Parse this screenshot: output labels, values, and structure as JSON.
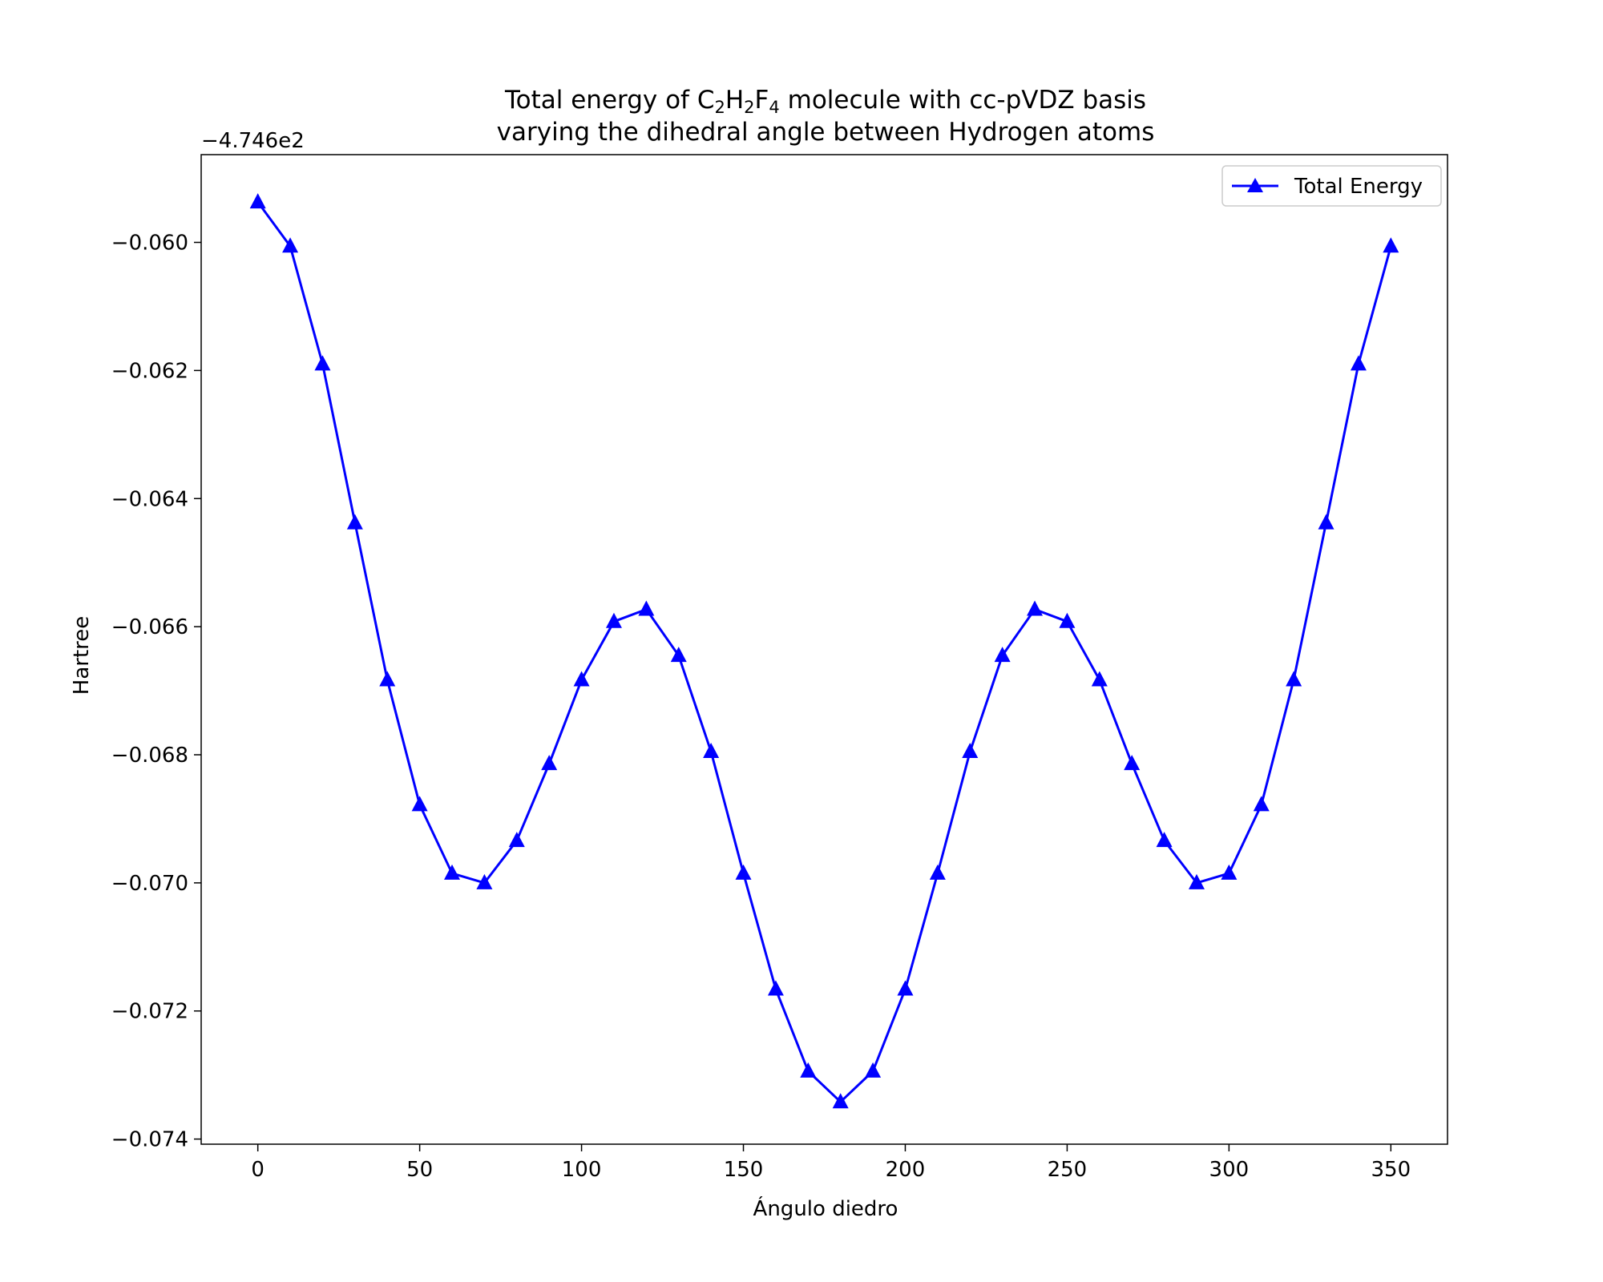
{
  "chart_data": {
    "type": "line",
    "title_line1_prefix": "Total energy of C",
    "title_sub1": "2",
    "title_mid1": "H",
    "title_sub2": "2",
    "title_mid2": "F",
    "title_sub3": "4",
    "title_line1_suffix": " molecule with cc-pVDZ basis",
    "title_line2": "varying the dihedral angle between Hydrogen atoms",
    "xlabel": "Ángulo diedro",
    "ylabel": "Hartree",
    "y_offset_label": "−4.746e2",
    "xlim": [
      -17.5,
      367.5
    ],
    "ylim": [
      -0.07408,
      -0.05863
    ],
    "xticks": [
      0,
      50,
      100,
      150,
      200,
      250,
      300,
      350
    ],
    "xtick_labels": [
      "0",
      "50",
      "100",
      "150",
      "200",
      "250",
      "300",
      "350"
    ],
    "yticks": [
      -0.06,
      -0.062,
      -0.064,
      -0.066,
      -0.068,
      -0.07,
      -0.072,
      -0.074
    ],
    "ytick_labels": [
      "−0.060",
      "−0.062",
      "−0.064",
      "−0.066",
      "−0.068",
      "−0.070",
      "−0.072",
      "−0.074"
    ],
    "legend_position": "top-right",
    "series": [
      {
        "name": "Total Energy",
        "color": "#0000ff",
        "marker": "triangle-up",
        "x": [
          0,
          10,
          20,
          30,
          40,
          50,
          60,
          70,
          80,
          90,
          100,
          110,
          120,
          130,
          140,
          150,
          160,
          170,
          180,
          190,
          200,
          210,
          220,
          230,
          240,
          250,
          260,
          270,
          280,
          290,
          300,
          310,
          320,
          330,
          340,
          350
        ],
        "y": [
          -0.05937,
          -0.06006,
          -0.0619,
          -0.06438,
          -0.06683,
          -0.06878,
          -0.06985,
          -0.07,
          -0.06934,
          -0.06814,
          -0.06683,
          -0.06592,
          -0.06573,
          -0.06645,
          -0.06795,
          -0.06985,
          -0.07166,
          -0.07294,
          -0.07342,
          -0.07294,
          -0.07166,
          -0.06985,
          -0.06795,
          -0.06645,
          -0.06573,
          -0.06592,
          -0.06683,
          -0.06814,
          -0.06934,
          -0.07,
          -0.06985,
          -0.06878,
          -0.06683,
          -0.06438,
          -0.0619,
          -0.06006
        ]
      }
    ]
  }
}
